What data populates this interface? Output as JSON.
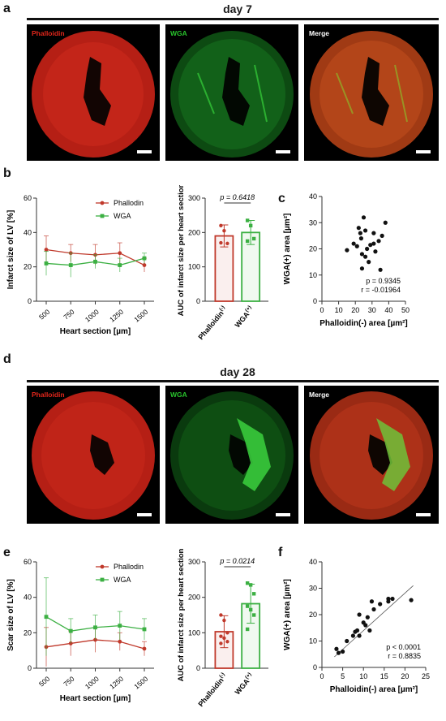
{
  "panel_letters": {
    "a": "a",
    "b": "b",
    "c": "c",
    "d": "d",
    "e": "e",
    "f": "f"
  },
  "day7": {
    "title": "day 7",
    "tiles": [
      {
        "label": "Phalloidin",
        "label_color": "#e0261b"
      },
      {
        "label": "WGA",
        "label_color": "#28c22c"
      },
      {
        "label": "Merge",
        "label_color": "#ffffff"
      }
    ]
  },
  "day28": {
    "title": "day 28",
    "tiles": [
      {
        "label": "Phalloidin",
        "label_color": "#e0261b"
      },
      {
        "label": "WGA",
        "label_color": "#28c22c"
      },
      {
        "label": "Merge",
        "label_color": "#ffffff"
      }
    ]
  },
  "colors": {
    "phalloidin": "#c0392b",
    "wga": "#3cb043",
    "axis": "#333333"
  },
  "chart_data": [
    {
      "id": "b-line",
      "type": "line",
      "xlabel": "Heart section [µm]",
      "ylabel": "Infarct size of LV [%]",
      "categories": [
        "500",
        "750",
        "1000",
        "1250",
        "1500"
      ],
      "ylim": [
        0,
        60
      ],
      "yticks": [
        0,
        20,
        40,
        60
      ],
      "series": [
        {
          "name": "Phallodin",
          "values": [
            30,
            28,
            27,
            28,
            21
          ],
          "err": [
            8,
            5,
            6,
            6,
            4
          ]
        },
        {
          "name": "WGA",
          "values": [
            22,
            21,
            23,
            21,
            25
          ],
          "err": [
            7,
            7,
            4,
            4,
            3
          ]
        }
      ],
      "legend": "top-right"
    },
    {
      "id": "b-bar",
      "type": "bar",
      "ylabel": "AUC of infarct size per heart section",
      "categories": [
        "Phalloidin(-)",
        "WGA(+)"
      ],
      "tick_main": [
        "Phalloidin",
        "WGA"
      ],
      "tick_sup": [
        "(-)",
        "(+)"
      ],
      "values": [
        190,
        200
      ],
      "err": [
        32,
        35
      ],
      "points": [
        [
          220,
          205,
          168,
          170
        ],
        [
          235,
          220,
          182,
          175
        ]
      ],
      "ylim": [
        0,
        300
      ],
      "yticks": [
        0,
        100,
        200,
        300
      ],
      "annotation": "p = 0.6418"
    },
    {
      "id": "c-scatter",
      "type": "scatter",
      "xlabel": "Phalloidin(-) area [µm²]",
      "ylabel": "WGA(+) area [µm²]",
      "xlim": [
        0,
        50
      ],
      "ylim": [
        0,
        40
      ],
      "xticks": [
        0,
        10,
        20,
        30,
        40,
        50
      ],
      "yticks": [
        0,
        10,
        20,
        30,
        40
      ],
      "points": [
        [
          15,
          19.5
        ],
        [
          19,
          22
        ],
        [
          21,
          21
        ],
        [
          22,
          28
        ],
        [
          23,
          26
        ],
        [
          23.5,
          24
        ],
        [
          24,
          18
        ],
        [
          24,
          12.5
        ],
        [
          25,
          32
        ],
        [
          26,
          27
        ],
        [
          26,
          17
        ],
        [
          27,
          20
        ],
        [
          28,
          15
        ],
        [
          29,
          21.5
        ],
        [
          31,
          22
        ],
        [
          31,
          26
        ],
        [
          32,
          19
        ],
        [
          34,
          23
        ],
        [
          35,
          12
        ],
        [
          36,
          25
        ],
        [
          38,
          30
        ]
      ],
      "stats": [
        "p = 0.9345",
        "r = -0.01964"
      ]
    },
    {
      "id": "e-line",
      "type": "line",
      "xlabel": "Heart section [µm]",
      "ylabel": "Scar size of LV [%]",
      "categories": [
        "500",
        "750",
        "1000",
        "1250",
        "1500"
      ],
      "ylim": [
        0,
        60
      ],
      "yticks": [
        0,
        20,
        40,
        60
      ],
      "series": [
        {
          "name": "Phallodin",
          "values": [
            12,
            14,
            16,
            15,
            11
          ],
          "err": [
            11,
            7,
            7,
            5,
            4
          ]
        },
        {
          "name": "WGA",
          "values": [
            29,
            21,
            23,
            24,
            22
          ],
          "err": [
            22,
            7,
            7,
            8,
            6
          ]
        }
      ],
      "legend": "top-right"
    },
    {
      "id": "e-bar",
      "type": "bar",
      "ylabel": "AUC of infarct size per heart section",
      "categories": [
        "Phalloidin(-)",
        "WGA(+)"
      ],
      "tick_main": [
        "Phalloidin",
        "WGA"
      ],
      "tick_sup": [
        "(-)",
        "(+)"
      ],
      "values": [
        103,
        182
      ],
      "err": [
        45,
        55
      ],
      "points": [
        [
          150,
          135,
          100,
          90,
          85,
          75,
          70
        ],
        [
          240,
          235,
          210,
          175,
          165,
          150,
          110
        ]
      ],
      "ylim": [
        0,
        300
      ],
      "yticks": [
        0,
        100,
        200,
        300
      ],
      "annotation": "p = 0.0214"
    },
    {
      "id": "f-scatter",
      "type": "scatter",
      "xlabel": "Phalloidin(-) area [µm²]",
      "ylabel": "WGA(+) area [µm²]",
      "xlim": [
        0,
        25
      ],
      "ylim": [
        0,
        40
      ],
      "xticks": [
        0,
        5,
        10,
        15,
        20,
        25
      ],
      "yticks": [
        0,
        10,
        20,
        30,
        40
      ],
      "points": [
        [
          3.5,
          7
        ],
        [
          4,
          5.5
        ],
        [
          5,
          6
        ],
        [
          6,
          10
        ],
        [
          7.5,
          12
        ],
        [
          8,
          13.5
        ],
        [
          8.5,
          14
        ],
        [
          9,
          12
        ],
        [
          9,
          20
        ],
        [
          10,
          17
        ],
        [
          10.5,
          16
        ],
        [
          11,
          19
        ],
        [
          11.5,
          14
        ],
        [
          12,
          25
        ],
        [
          12.5,
          22
        ],
        [
          14,
          24
        ],
        [
          16,
          26
        ],
        [
          16,
          25
        ],
        [
          17,
          26
        ],
        [
          21.5,
          25.5
        ]
      ],
      "fit": [
        [
          3,
          4
        ],
        [
          22,
          31
        ]
      ],
      "stats": [
        "p < 0.0001",
        "r = 0.8835"
      ]
    }
  ]
}
